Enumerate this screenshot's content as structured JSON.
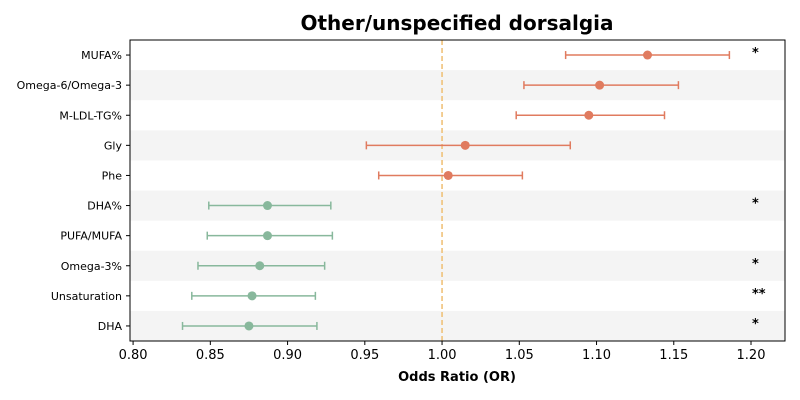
{
  "chart_data": {
    "type": "forest",
    "title": "Other/unspecified dorsalgia",
    "xlabel": "Odds Ratio (OR)",
    "xlim": [
      0.798,
      1.222
    ],
    "xticks": [
      "0.80",
      "0.85",
      "0.90",
      "0.95",
      "1.00",
      "1.05",
      "1.10",
      "1.15",
      "1.20"
    ],
    "reference_line": 1.0,
    "rows": [
      {
        "label": "MUFA%",
        "or": 1.133,
        "lower": 1.08,
        "upper": 1.186,
        "sig": "*",
        "color": "#e07b5f"
      },
      {
        "label": "Omega-6/Omega-3",
        "or": 1.102,
        "lower": 1.053,
        "upper": 1.153,
        "sig": "",
        "color": "#e07b5f"
      },
      {
        "label": "M-LDL-TG%",
        "or": 1.095,
        "lower": 1.048,
        "upper": 1.144,
        "sig": "",
        "color": "#e07b5f"
      },
      {
        "label": "Gly",
        "or": 1.015,
        "lower": 0.951,
        "upper": 1.083,
        "sig": "",
        "color": "#e07b5f"
      },
      {
        "label": "Phe",
        "or": 1.004,
        "lower": 0.959,
        "upper": 1.052,
        "sig": "",
        "color": "#e07b5f"
      },
      {
        "label": "DHA%",
        "or": 0.887,
        "lower": 0.849,
        "upper": 0.928,
        "sig": "*",
        "color": "#88b89c"
      },
      {
        "label": "PUFA/MUFA",
        "or": 0.887,
        "lower": 0.848,
        "upper": 0.929,
        "sig": "",
        "color": "#88b89c"
      },
      {
        "label": "Omega-3%",
        "or": 0.882,
        "lower": 0.842,
        "upper": 0.924,
        "sig": "*",
        "color": "#88b89c"
      },
      {
        "label": "Unsaturation",
        "or": 0.877,
        "lower": 0.838,
        "upper": 0.918,
        "sig": "**",
        "color": "#88b89c"
      },
      {
        "label": "DHA",
        "or": 0.875,
        "lower": 0.832,
        "upper": 0.919,
        "sig": "*",
        "color": "#88b89c"
      }
    ],
    "colors": {
      "increase": "#e07b5f",
      "decrease": "#88b89c",
      "reference": "#f0c27a",
      "band": "#f4f4f4"
    }
  }
}
